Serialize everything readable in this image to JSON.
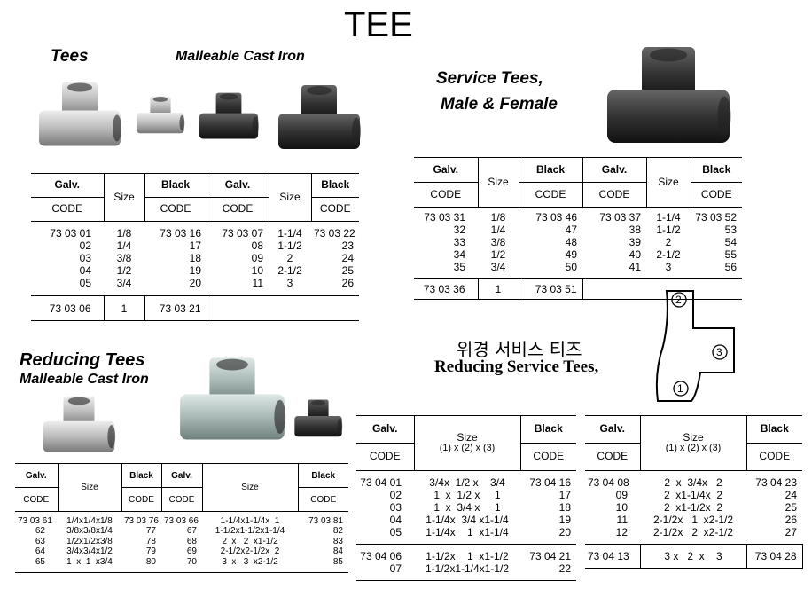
{
  "title": "TEE",
  "sections": [
    {
      "title": "Tees",
      "subtitle": "Malleable Cast Iron",
      "tables": [
        {
          "columns": [
            {
              "head": "Galv.",
              "sub": "CODE"
            },
            {
              "head": "Size"
            },
            {
              "head": "Black",
              "sub": "CODE"
            },
            {
              "head": "Galv.",
              "sub": "CODE"
            },
            {
              "head": "Size"
            },
            {
              "head": "Black",
              "sub": "CODE"
            }
          ],
          "groups": [
            [
              [
                "73 03 01",
                "1/8",
                "73 03 16",
                "73 03 07",
                "1-1/4",
                "73 03 22"
              ],
              [
                "02",
                "1/4",
                "17",
                "08",
                "1-1/2",
                "23"
              ],
              [
                "03",
                "3/8",
                "18",
                "09",
                "2",
                "24"
              ],
              [
                "04",
                "1/2",
                "19",
                "10",
                "2-1/2",
                "25"
              ],
              [
                "05",
                "3/4",
                "20",
                "11",
                "3",
                "26"
              ]
            ],
            [
              [
                "73 03 06",
                "1",
                "73 03 21"
              ]
            ]
          ]
        }
      ]
    },
    {
      "title": "Service Tees,",
      "subtitle": "Male & Female",
      "tables": [
        {
          "columns": [
            {
              "head": "Galv.",
              "sub": "CODE"
            },
            {
              "head": "Size"
            },
            {
              "head": "Black",
              "sub": "CODE"
            },
            {
              "head": "Galv.",
              "sub": "CODE"
            },
            {
              "head": "Size"
            },
            {
              "head": "Black",
              "sub": "CODE"
            }
          ],
          "groups": [
            [
              [
                "73 03 31",
                "1/8",
                "73 03 46",
                "73 03 37",
                "1-1/4",
                "73 03 52"
              ],
              [
                "32",
                "1/4",
                "47",
                "38",
                "1-1/2",
                "53"
              ],
              [
                "33",
                "3/8",
                "48",
                "39",
                "2",
                "54"
              ],
              [
                "34",
                "1/2",
                "49",
                "40",
                "2-1/2",
                "55"
              ],
              [
                "35",
                "3/4",
                "50",
                "41",
                "3",
                "56"
              ]
            ],
            [
              [
                "73 03 36",
                "1",
                "73 03 51"
              ]
            ]
          ]
        }
      ]
    },
    {
      "title": "Reducing Tees",
      "subtitle": "Malleable Cast Iron",
      "tables": [
        {
          "columns": [
            {
              "head": "Galv.",
              "sub": "CODE"
            },
            {
              "head": "Size"
            },
            {
              "head": "Black",
              "sub": "CODE"
            },
            {
              "head": "Galv.",
              "sub": "CODE"
            },
            {
              "head": "Size"
            },
            {
              "head": "Black",
              "sub": "CODE"
            }
          ],
          "groups": [
            [
              [
                "73 03 61",
                "1/4x1/4x1/8",
                "73 03 76",
                "73 03 66",
                "1-1/4x1-1/4x  1",
                "73 03 81"
              ],
              [
                "62",
                "3/8x3/8x1/4",
                "77",
                "67",
                "1-1/2x1-1/2x1-1/4",
                "82"
              ],
              [
                "63",
                "1/2x1/2x3/8",
                "78",
                "68",
                "2  x   2  x1-1/2",
                "83"
              ],
              [
                "64",
                "3/4x3/4x1/2",
                "79",
                "69",
                "2-1/2x2-1/2x  2",
                "84"
              ],
              [
                "65",
                "1  x  1  x3/4",
                "80",
                "70",
                "3  x   3  x2-1/2",
                "85"
              ]
            ]
          ]
        }
      ]
    },
    {
      "title": "위경 서비스 티즈",
      "subtitle": "Reducing Service Tees,",
      "diagram_labels": [
        "2",
        "3",
        "1"
      ],
      "tables": [
        {
          "columns": [
            {
              "head": "Galv.",
              "sub": "CODE"
            },
            {
              "head": "Size",
              "note": "(1) x (2) x (3)"
            },
            {
              "head": "Black",
              "sub": "CODE"
            }
          ],
          "groups": [
            [
              [
                "73 04 01",
                "3/4x  1/2 x    3/4",
                "73 04 16"
              ],
              [
                "02",
                "1  x  1/2 x     1",
                "17"
              ],
              [
                "03",
                "1  x  3/4 x     1",
                "18"
              ],
              [
                "04",
                "1-1/4x  3/4 x1-1/4",
                "19"
              ],
              [
                "05",
                "1-1/4x    1  x1-1/4",
                "20"
              ]
            ],
            [
              [
                "73 04 06",
                "1-1/2x    1  x1-1/2",
                "73 04 21"
              ],
              [
                "07",
                "1-1/2x1-1/4x1-1/2",
                "22"
              ]
            ]
          ]
        },
        {
          "columns": [
            {
              "head": "Galv.",
              "sub": "CODE"
            },
            {
              "head": "Size",
              "note": "(1) x (2) x (3)"
            },
            {
              "head": "Black",
              "sub": "CODE"
            }
          ],
          "groups": [
            [
              [
                "73 04 08",
                "2  x  3/4x   2",
                "73 04 23"
              ],
              [
                "09",
                "2  x1-1/4x  2",
                "24"
              ],
              [
                "10",
                "2  x1-1/2x  2",
                "25"
              ],
              [
                "11",
                "2-1/2x   1  x2-1/2",
                "26"
              ],
              [
                "12",
                "2-1/2x   2  x2-1/2",
                "27"
              ]
            ],
            [
              [
                "73 04 13",
                "3 x   2  x    3",
                "73 04 28"
              ]
            ]
          ]
        }
      ]
    }
  ]
}
